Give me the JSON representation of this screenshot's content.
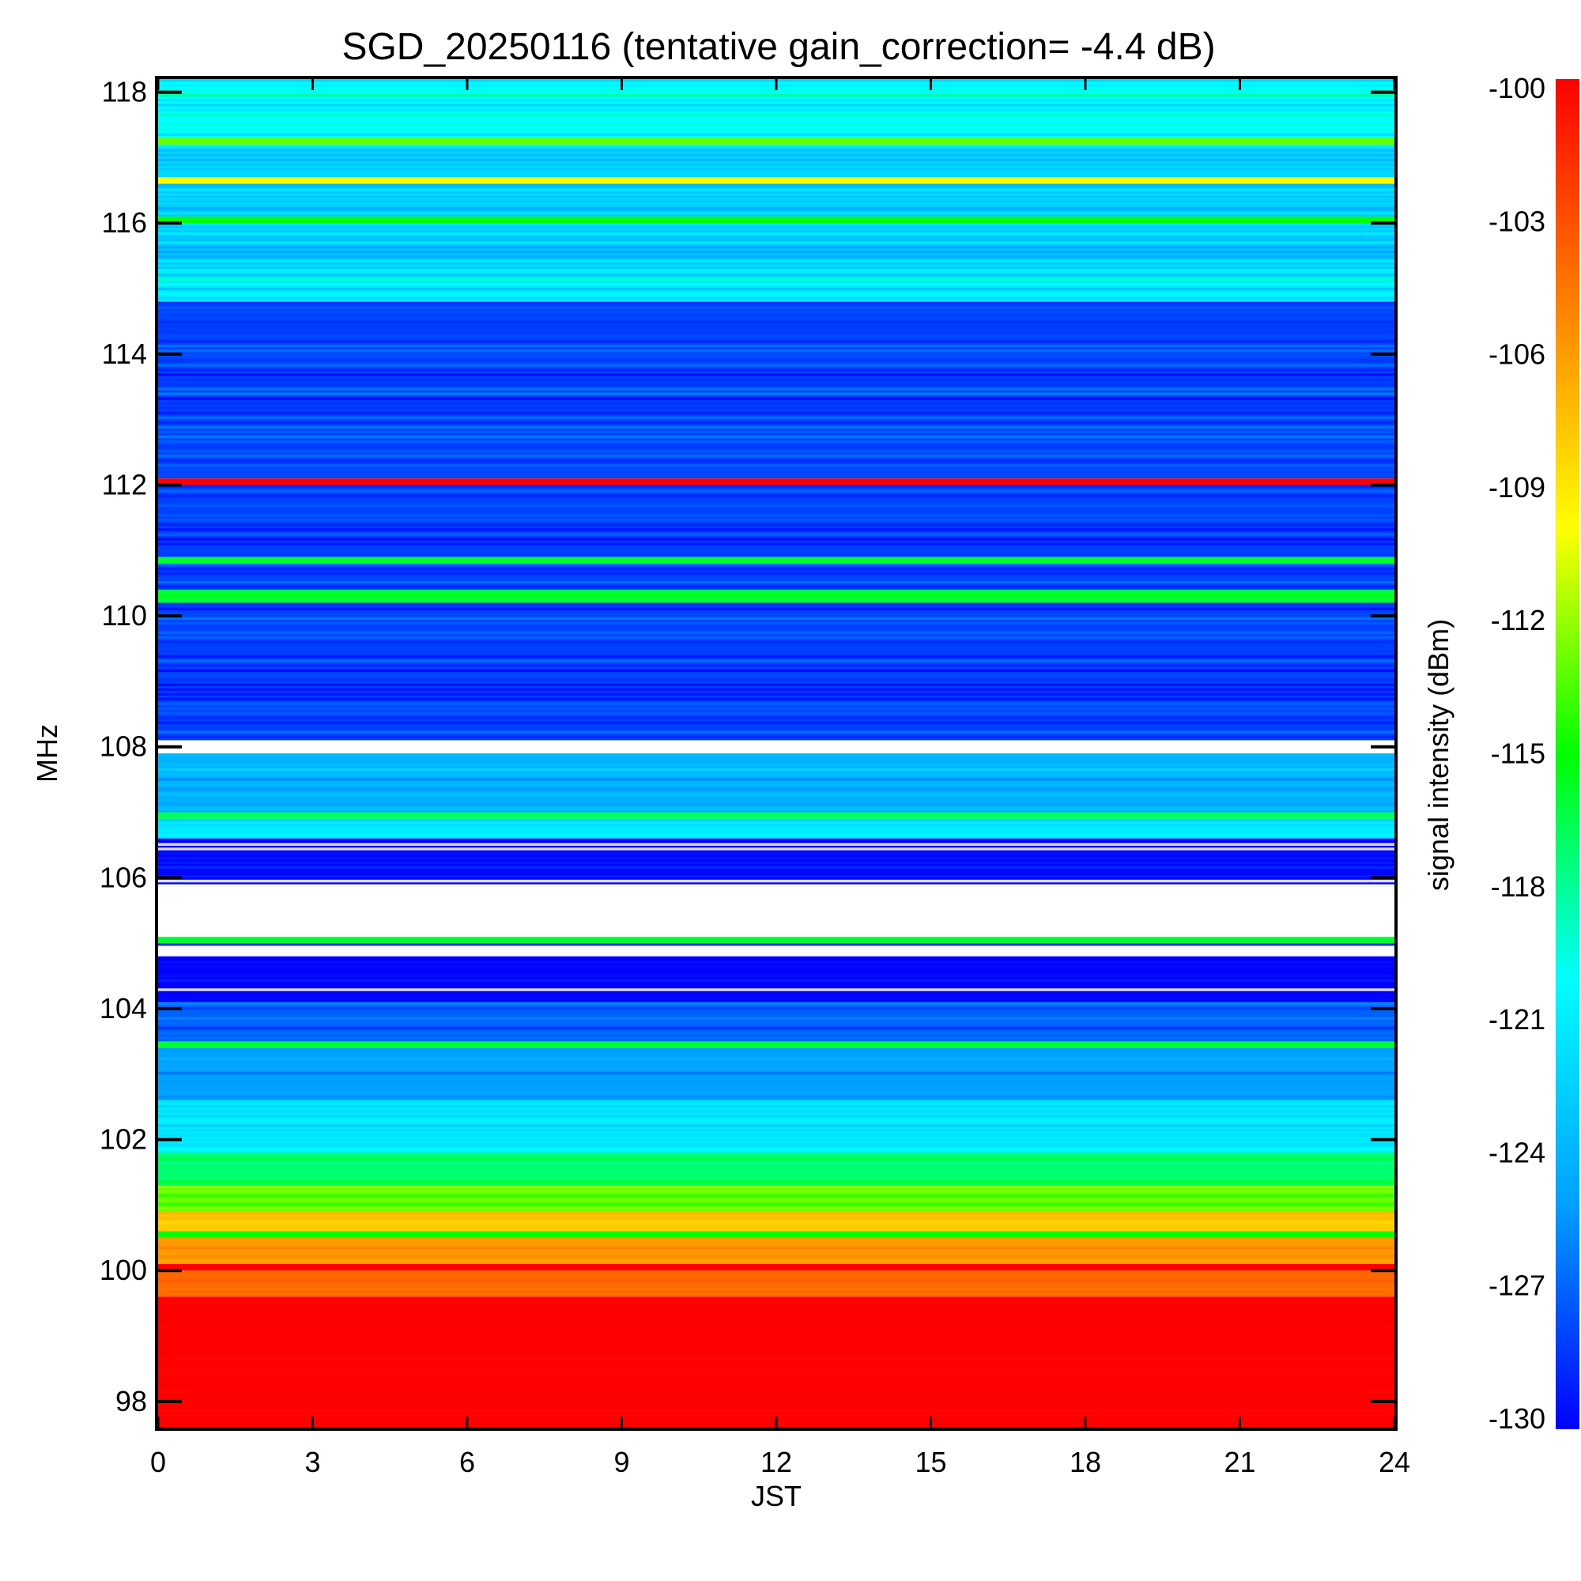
{
  "chart_data": {
    "type": "heatmap",
    "title": "SGD_20250116 (tentative gain_correction= -4.4 dB)",
    "xlabel": "JST",
    "ylabel": "MHz",
    "colorbar_label": "signal intensity (dBm)",
    "xlim": [
      0,
      24
    ],
    "ylim": [
      97.6,
      118.2
    ],
    "x_ticks": [
      0,
      3,
      6,
      9,
      12,
      15,
      18,
      21,
      24
    ],
    "y_ticks": [
      98,
      100,
      102,
      104,
      106,
      108,
      110,
      112,
      114,
      116,
      118
    ],
    "color_range": [
      -130,
      -100
    ],
    "colorbar_ticks": [
      -100,
      -103,
      -106,
      -109,
      -112,
      -115,
      -118,
      -121,
      -124,
      -127,
      -130
    ],
    "colormap": [
      "#0000ff",
      "#00a0ff",
      "#00ffff",
      "#00ff00",
      "#ffff00",
      "#ff8000",
      "#ff0000"
    ],
    "bands": [
      {
        "f0": 97.6,
        "f1": 99.6,
        "value": -100,
        "noise": 0.4
      },
      {
        "f0": 99.6,
        "f1": 100.0,
        "value": -104,
        "noise": 0.8
      },
      {
        "f0": 100.0,
        "f1": 100.1,
        "value": -100,
        "noise": 0.3
      },
      {
        "f0": 100.1,
        "f1": 100.5,
        "value": -106,
        "noise": 1.0
      },
      {
        "f0": 100.5,
        "f1": 100.6,
        "value": -115,
        "noise": 0.5
      },
      {
        "f0": 100.6,
        "f1": 100.9,
        "value": -108,
        "noise": 1.2
      },
      {
        "f0": 100.9,
        "f1": 101.3,
        "value": -113,
        "noise": 1.5
      },
      {
        "f0": 101.3,
        "f1": 101.8,
        "value": -117,
        "noise": 1.5
      },
      {
        "f0": 101.8,
        "f1": 102.6,
        "value": -121,
        "noise": 1.5
      },
      {
        "f0": 102.6,
        "f1": 103.4,
        "value": -125,
        "noise": 1.5
      },
      {
        "f0": 103.4,
        "f1": 103.5,
        "value": -116,
        "noise": 0.8
      },
      {
        "f0": 103.5,
        "f1": 104.1,
        "value": -127,
        "noise": 1.5
      },
      {
        "f0": 104.1,
        "f1": 104.8,
        "value": -130,
        "noise": 1.0
      },
      {
        "f0": 104.8,
        "f1": 105.0,
        "value": -131,
        "noise": 1.0
      },
      {
        "f0": 105.0,
        "f1": 105.1,
        "value": -116,
        "noise": 0.2
      },
      {
        "f0": 105.1,
        "f1": 105.9,
        "value": -140,
        "noise": 0.5
      },
      {
        "f0": 105.9,
        "f1": 106.6,
        "value": -130,
        "noise": 1.5
      },
      {
        "f0": 106.6,
        "f1": 106.9,
        "value": -121,
        "noise": 1.5
      },
      {
        "f0": 106.9,
        "f1": 107.0,
        "value": -117,
        "noise": 0.6
      },
      {
        "f0": 107.0,
        "f1": 107.9,
        "value": -124,
        "noise": 2.0
      },
      {
        "f0": 107.9,
        "f1": 108.1,
        "value": -140,
        "noise": 0.5
      },
      {
        "f0": 108.1,
        "f1": 110.2,
        "value": -128,
        "noise": 2.0
      },
      {
        "f0": 110.2,
        "f1": 110.4,
        "value": -116,
        "noise": 0.6
      },
      {
        "f0": 110.4,
        "f1": 110.8,
        "value": -128,
        "noise": 1.8
      },
      {
        "f0": 110.8,
        "f1": 110.9,
        "value": -116,
        "noise": 0.6
      },
      {
        "f0": 110.9,
        "f1": 112.0,
        "value": -128,
        "noise": 2.0
      },
      {
        "f0": 112.0,
        "f1": 112.1,
        "value": -100,
        "noise": 0.2
      },
      {
        "f0": 112.1,
        "f1": 114.8,
        "value": -128,
        "noise": 2.0
      },
      {
        "f0": 114.8,
        "f1": 115.3,
        "value": -121,
        "noise": 2.5
      },
      {
        "f0": 115.3,
        "f1": 116.0,
        "value": -123,
        "noise": 2.5
      },
      {
        "f0": 116.0,
        "f1": 116.1,
        "value": -115,
        "noise": 0.6
      },
      {
        "f0": 116.1,
        "f1": 116.6,
        "value": -123,
        "noise": 2.5
      },
      {
        "f0": 116.6,
        "f1": 116.7,
        "value": -110,
        "noise": 0.6
      },
      {
        "f0": 116.7,
        "f1": 117.2,
        "value": -122,
        "noise": 2.5
      },
      {
        "f0": 117.2,
        "f1": 117.3,
        "value": -113,
        "noise": 0.6
      },
      {
        "f0": 117.3,
        "f1": 118.2,
        "value": -120,
        "noise": 2.5
      }
    ]
  }
}
